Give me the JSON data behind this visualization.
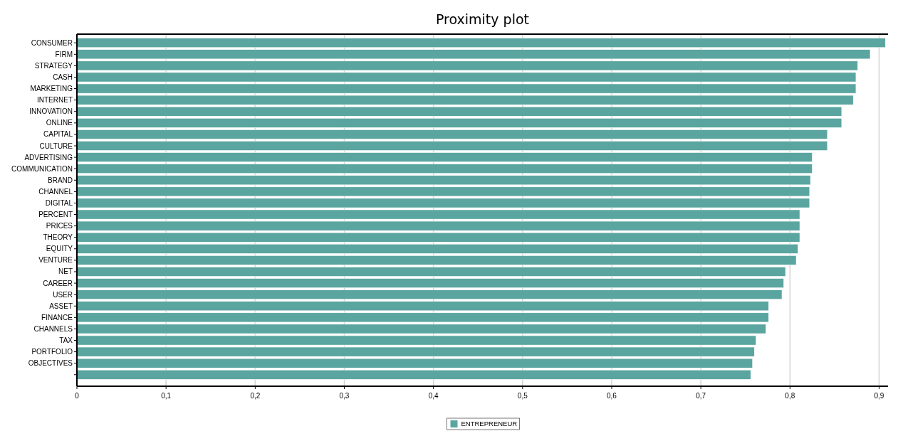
{
  "chart_data": {
    "type": "bar",
    "orientation": "horizontal",
    "title": "Proximity plot",
    "categories": [
      "CONSUMER",
      "FIRM",
      "STRATEGY",
      "CASH",
      "MARKETING",
      "INTERNET",
      "INNOVATION",
      "ONLINE",
      "CAPITAL",
      "CULTURE",
      "ADVERTISING",
      "COMMUNICATION",
      "BRAND",
      "CHANNEL",
      "DIGITAL",
      "PERCENT",
      "PRICES",
      "THEORY",
      "EQUITY",
      "VENTURE",
      "NET",
      "CAREER",
      "USER",
      "ASSET",
      "FINANCE",
      "CHANNELS",
      "TAX",
      "PORTFOLIO",
      "OBJECTIVES",
      null
    ],
    "series": [
      {
        "name": "ENTREPRENEUR",
        "color": "#5ba5a0",
        "values": [
          0.907,
          0.89,
          0.876,
          0.874,
          0.874,
          0.871,
          0.858,
          0.858,
          0.842,
          0.842,
          0.825,
          0.825,
          0.823,
          0.822,
          0.822,
          0.811,
          0.811,
          0.811,
          0.809,
          0.807,
          0.795,
          0.793,
          0.791,
          0.776,
          0.776,
          0.773,
          0.762,
          0.76,
          0.758,
          0.756
        ]
      }
    ],
    "xlim": [
      0,
      0.91
    ],
    "xticks": [
      {
        "value": 0,
        "label": "0"
      },
      {
        "value": 0.1,
        "label": "0,1"
      },
      {
        "value": 0.2,
        "label": "0,2"
      },
      {
        "value": 0.3,
        "label": "0,3"
      },
      {
        "value": 0.4,
        "label": "0,4"
      },
      {
        "value": 0.5,
        "label": "0,5"
      },
      {
        "value": 0.6,
        "label": "0,6"
      },
      {
        "value": 0.7,
        "label": "0,7"
      },
      {
        "value": 0.8,
        "label": "0,8"
      },
      {
        "value": 0.9,
        "label": "0,9"
      }
    ],
    "grid": "x",
    "legend": "bottom"
  }
}
